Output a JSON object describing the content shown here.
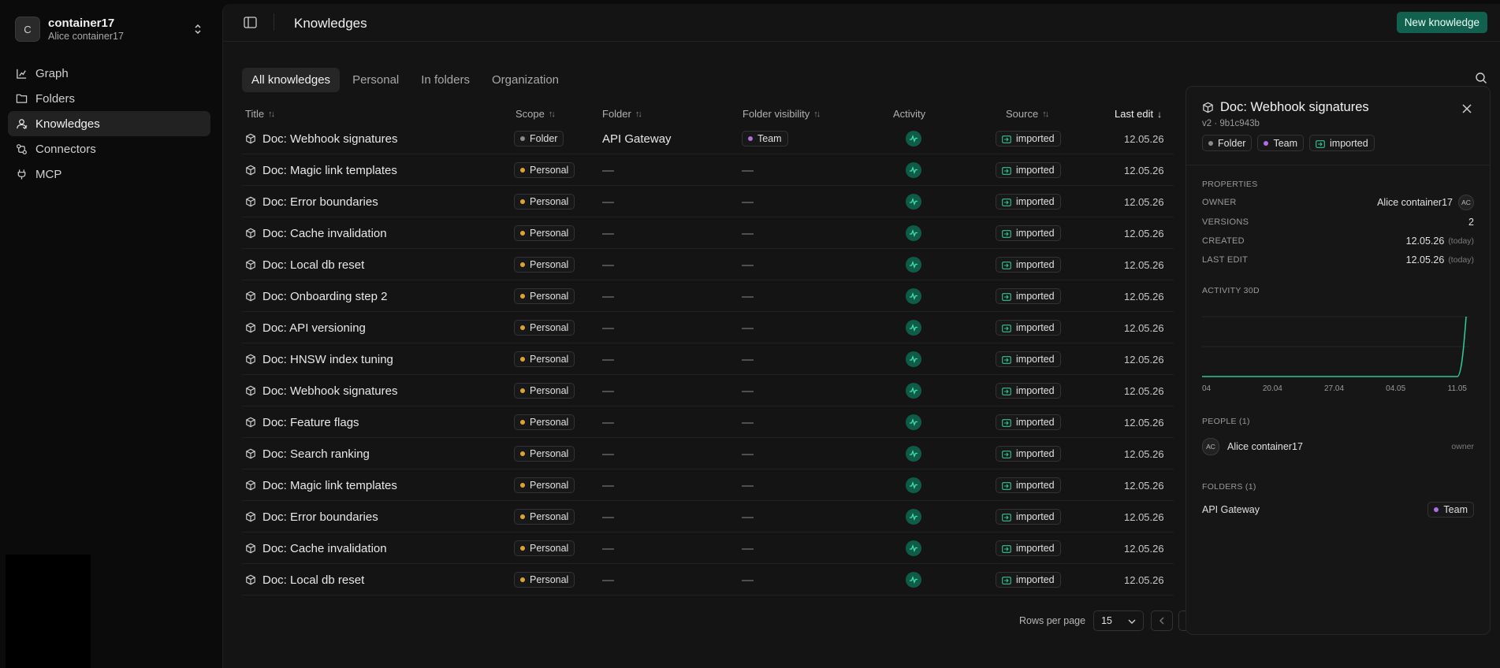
{
  "workspace": {
    "initial": "C",
    "name": "container17",
    "user": "Alice container17"
  },
  "nav": [
    {
      "label": "Graph",
      "icon": "graph-icon",
      "active": false
    },
    {
      "label": "Folders",
      "icon": "folder-icon",
      "active": false
    },
    {
      "label": "Knowledges",
      "icon": "knowledge-icon",
      "active": true
    },
    {
      "label": "Connectors",
      "icon": "connectors-icon",
      "active": false
    },
    {
      "label": "MCP",
      "icon": "plug-icon",
      "active": false
    }
  ],
  "header": {
    "title": "Knowledges",
    "new_button": "New knowledge"
  },
  "tabs": [
    {
      "label": "All knowledges",
      "active": true
    },
    {
      "label": "Personal",
      "active": false
    },
    {
      "label": "In folders",
      "active": false
    },
    {
      "label": "Organization",
      "active": false
    }
  ],
  "table": {
    "columns": [
      {
        "label": "Title",
        "sortable": true
      },
      {
        "label": "Scope",
        "sortable": true
      },
      {
        "label": "Folder",
        "sortable": true
      },
      {
        "label": "Folder visibility",
        "sortable": true
      },
      {
        "label": "Activity",
        "sortable": false
      },
      {
        "label": "Source",
        "sortable": true
      },
      {
        "label": "Last edit",
        "sortable": true,
        "sorted": "desc"
      }
    ],
    "rows": [
      {
        "title": "Doc: Webhook signatures",
        "scope": "Folder",
        "folder": "API Gateway",
        "visibility": "Team",
        "source": "imported",
        "last_edit": "12.05.26"
      },
      {
        "title": "Doc: Magic link templates",
        "scope": "Personal",
        "folder": "—",
        "visibility": "—",
        "source": "imported",
        "last_edit": "12.05.26"
      },
      {
        "title": "Doc: Error boundaries",
        "scope": "Personal",
        "folder": "—",
        "visibility": "—",
        "source": "imported",
        "last_edit": "12.05.26"
      },
      {
        "title": "Doc: Cache invalidation",
        "scope": "Personal",
        "folder": "—",
        "visibility": "—",
        "source": "imported",
        "last_edit": "12.05.26"
      },
      {
        "title": "Doc: Local db reset",
        "scope": "Personal",
        "folder": "—",
        "visibility": "—",
        "source": "imported",
        "last_edit": "12.05.26"
      },
      {
        "title": "Doc: Onboarding step 2",
        "scope": "Personal",
        "folder": "—",
        "visibility": "—",
        "source": "imported",
        "last_edit": "12.05.26"
      },
      {
        "title": "Doc: API versioning",
        "scope": "Personal",
        "folder": "—",
        "visibility": "—",
        "source": "imported",
        "last_edit": "12.05.26"
      },
      {
        "title": "Doc: HNSW index tuning",
        "scope": "Personal",
        "folder": "—",
        "visibility": "—",
        "source": "imported",
        "last_edit": "12.05.26"
      },
      {
        "title": "Doc: Webhook signatures",
        "scope": "Personal",
        "folder": "—",
        "visibility": "—",
        "source": "imported",
        "last_edit": "12.05.26"
      },
      {
        "title": "Doc: Feature flags",
        "scope": "Personal",
        "folder": "—",
        "visibility": "—",
        "source": "imported",
        "last_edit": "12.05.26"
      },
      {
        "title": "Doc: Search ranking",
        "scope": "Personal",
        "folder": "—",
        "visibility": "—",
        "source": "imported",
        "last_edit": "12.05.26"
      },
      {
        "title": "Doc: Magic link templates",
        "scope": "Personal",
        "folder": "—",
        "visibility": "—",
        "source": "imported",
        "last_edit": "12.05.26"
      },
      {
        "title": "Doc: Error boundaries",
        "scope": "Personal",
        "folder": "—",
        "visibility": "—",
        "source": "imported",
        "last_edit": "12.05.26"
      },
      {
        "title": "Doc: Cache invalidation",
        "scope": "Personal",
        "folder": "—",
        "visibility": "—",
        "source": "imported",
        "last_edit": "12.05.26"
      },
      {
        "title": "Doc: Local db reset",
        "scope": "Personal",
        "folder": "—",
        "visibility": "—",
        "source": "imported",
        "last_edit": "12.05.26"
      }
    ]
  },
  "pagination": {
    "rows_per_page_label": "Rows per page",
    "rows_per_page": "15"
  },
  "detail": {
    "title": "Doc: Webhook signatures",
    "subtitle": "v2 · 9b1c943b",
    "tags": [
      {
        "label": "Folder",
        "color": "#8a8a8a"
      },
      {
        "label": "Team",
        "color": "#b06ee6"
      },
      {
        "label": "imported",
        "icon": "import-icon"
      }
    ],
    "properties_label": "Properties",
    "properties": {
      "owner_key": "Owner",
      "owner": "Alice container17",
      "owner_initials": "AC",
      "versions_key": "Versions",
      "versions": "2",
      "created_key": "Created",
      "created": "12.05.26",
      "created_note": "(today)",
      "last_edit_key": "Last edit",
      "last_edit": "12.05.26",
      "last_edit_note": "(today)"
    },
    "activity_label": "Activity 30d",
    "people_label": "People (1)",
    "people": [
      {
        "initials": "AC",
        "name": "Alice container17",
        "role": "owner"
      }
    ],
    "folders_label": "Folders (1)",
    "folders": [
      {
        "name": "API Gateway",
        "visibility": "Team"
      }
    ]
  },
  "chart_data": {
    "type": "line",
    "x": [
      "12.04",
      "13.04",
      "14.04",
      "15.04",
      "16.04",
      "17.04",
      "18.04",
      "19.04",
      "20.04",
      "21.04",
      "22.04",
      "23.04",
      "24.04",
      "25.04",
      "26.04",
      "27.04",
      "28.04",
      "29.04",
      "30.04",
      "01.05",
      "02.05",
      "03.05",
      "04.05",
      "05.05",
      "06.05",
      "07.05",
      "08.05",
      "09.05",
      "10.05",
      "11.05",
      "12.05"
    ],
    "tick_labels": [
      "04",
      "20.04",
      "27.04",
      "04.05",
      "11.05"
    ],
    "values": [
      0,
      0,
      0,
      0,
      0,
      0,
      0,
      0,
      0,
      0,
      0,
      0,
      0,
      0,
      0,
      0,
      0,
      0,
      0,
      0,
      0,
      0,
      0,
      0,
      0,
      0,
      0,
      0,
      0,
      0,
      2
    ],
    "ylim": [
      0,
      2
    ],
    "grid": true,
    "color": "#2fc596"
  },
  "colors": {
    "accent": "#12614f",
    "personal": "#e0a528",
    "team": "#b06ee6",
    "folder": "#8a8a8a",
    "activity": "#2fc596"
  }
}
